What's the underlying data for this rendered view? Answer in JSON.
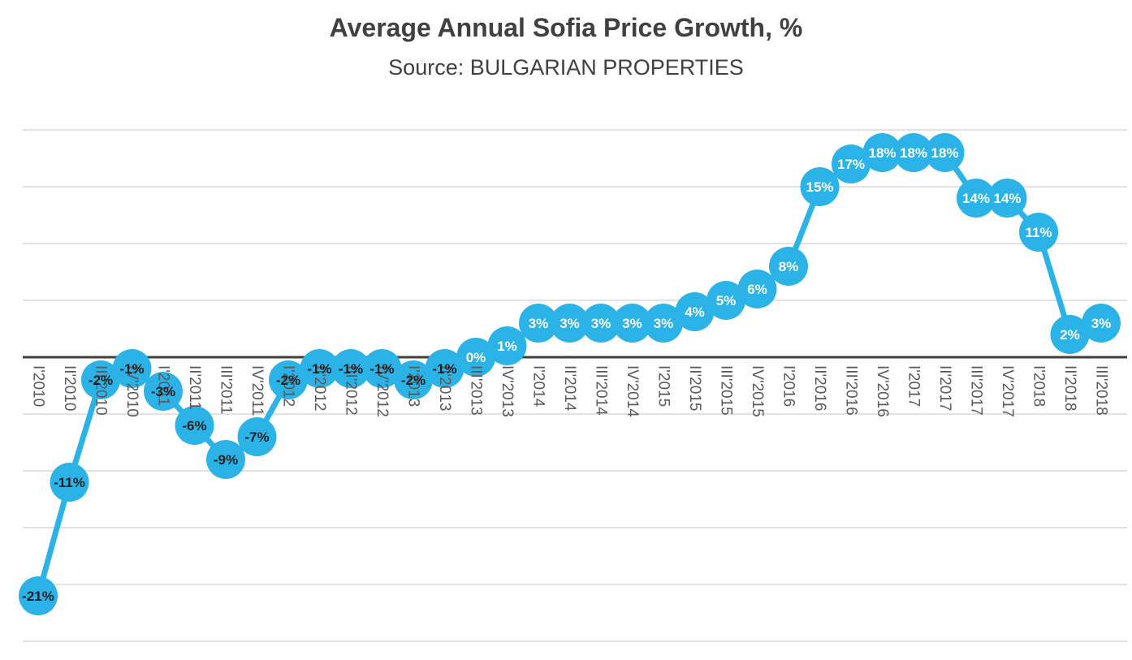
{
  "chart_data": {
    "type": "line",
    "title": "Average Annual Sofia Price Growth, %",
    "subtitle": "Source: BULGARIAN PROPERTIES",
    "categories": [
      "I'2010",
      "II'2010",
      "III'2010",
      "IV'2010",
      "I'2011",
      "II'2011",
      "III'2011",
      "IV'2011",
      "I'2012",
      "II'2012",
      "III'2012",
      "IV'2012",
      "I'2013",
      "II'2013",
      "III'2013",
      "IV'2013",
      "I'2014",
      "II'2014",
      "III'2014",
      "IV'2014",
      "I'2015",
      "II'2015",
      "III'2015",
      "IV'2015",
      "I'2016",
      "II'2016",
      "III'2016",
      "IV'2016",
      "I'2017",
      "II'2017",
      "III'2017",
      "IV'2017",
      "I'2018",
      "II'2018",
      "III'2018"
    ],
    "values": [
      -21,
      -11,
      -2,
      -1,
      -3,
      -6,
      -9,
      -7,
      -2,
      -1,
      -1,
      -1,
      -2,
      -1,
      0,
      1,
      3,
      3,
      3,
      3,
      3,
      4,
      5,
      6,
      8,
      15,
      17,
      18,
      18,
      18,
      14,
      14,
      11,
      2,
      3
    ],
    "data_labels": [
      "-21%",
      "-11%",
      "-2%",
      "-1%",
      "-3%",
      "-6%",
      "-9%",
      "-7%",
      "-2%",
      "-1%",
      "-1%",
      "-1%",
      "-2%",
      "-1%",
      "0%",
      "1%",
      "3%",
      "3%",
      "3%",
      "3%",
      "3%",
      "4%",
      "5%",
      "6%",
      "8%",
      "15%",
      "17%",
      "18%",
      "18%",
      "18%",
      "14%",
      "14%",
      "11%",
      "2%",
      "3%"
    ],
    "ylim": [
      -25,
      20
    ],
    "grid_step": 5,
    "grid": true,
    "legend": false,
    "colors": {
      "series": "#2BB3E8",
      "grid": "#D9D9D9",
      "zero_axis": "#3F3F3F",
      "title": "#404040",
      "axis_labels": "#595959",
      "label_positive": "#FFFFFF",
      "label_negative": "#1F1F1F"
    }
  }
}
